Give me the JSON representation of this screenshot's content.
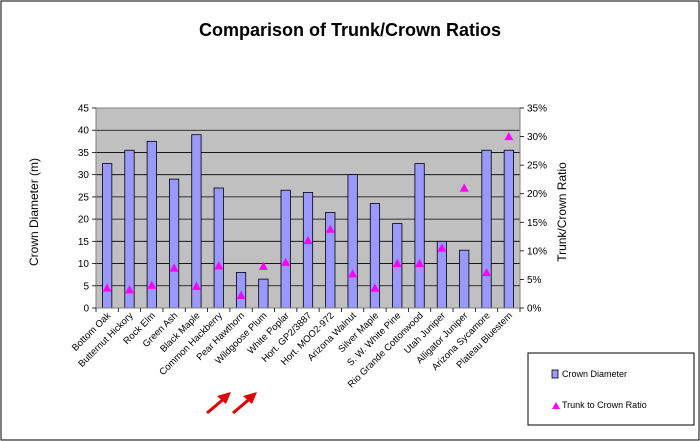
{
  "chart_data": {
    "type": "bar",
    "title": "Comparison of Trunk/Crown Ratios",
    "ylabel_left": "Crown Diameter (m)",
    "ylabel_right": "Trunk/Crown Ratio",
    "left_axis": {
      "min": 0,
      "max": 45,
      "ticks": [
        "0",
        "5",
        "10",
        "15",
        "20",
        "25",
        "30",
        "35",
        "40",
        "45"
      ]
    },
    "right_axis": {
      "min": 0,
      "max": 0.35,
      "ticks": [
        "0%",
        "5%",
        "10%",
        "15%",
        "20%",
        "25%",
        "30%",
        "35%"
      ]
    },
    "grid": true,
    "plot_background": "#c0c0c0",
    "bar_color": "#9999ff",
    "marker_color": "#ff00ff",
    "legend_position": "bottom-right",
    "categories": [
      "Bottom Oak",
      "Butternut Hickory",
      "Rock Elm",
      "Green Ash",
      "Black Maple",
      "Common Hackberry",
      "Pear Hawthorn",
      "Wildgoose Plum",
      "White Poplar",
      "Hort. GP2/3887",
      "Hort. MOO2-972",
      "Arizona Walnut",
      "Silver Maple",
      "S. W. White Pine",
      "Rio Grande Cottonwood",
      "Utah Juniper",
      "Alligator Juniper",
      "Arizona Sycamore",
      "Plateau Bluestem"
    ],
    "series": [
      {
        "name": "Crown Diameter",
        "kind": "bar",
        "axis": "left",
        "values": [
          32.5,
          35.5,
          37.5,
          29,
          39,
          27,
          8,
          6.5,
          26.5,
          26,
          21.5,
          30,
          23.5,
          19,
          32.5,
          15,
          13,
          35.5,
          35.5
        ]
      },
      {
        "name": "Trunk to Crown Ratio",
        "kind": "marker",
        "axis": "right",
        "values": [
          0.035,
          0.032,
          0.04,
          0.07,
          0.038,
          0.074,
          0.022,
          0.073,
          0.08,
          0.118,
          0.138,
          0.06,
          0.035,
          0.078,
          0.078,
          0.105,
          0.21,
          0.062,
          0.3
        ]
      }
    ]
  }
}
